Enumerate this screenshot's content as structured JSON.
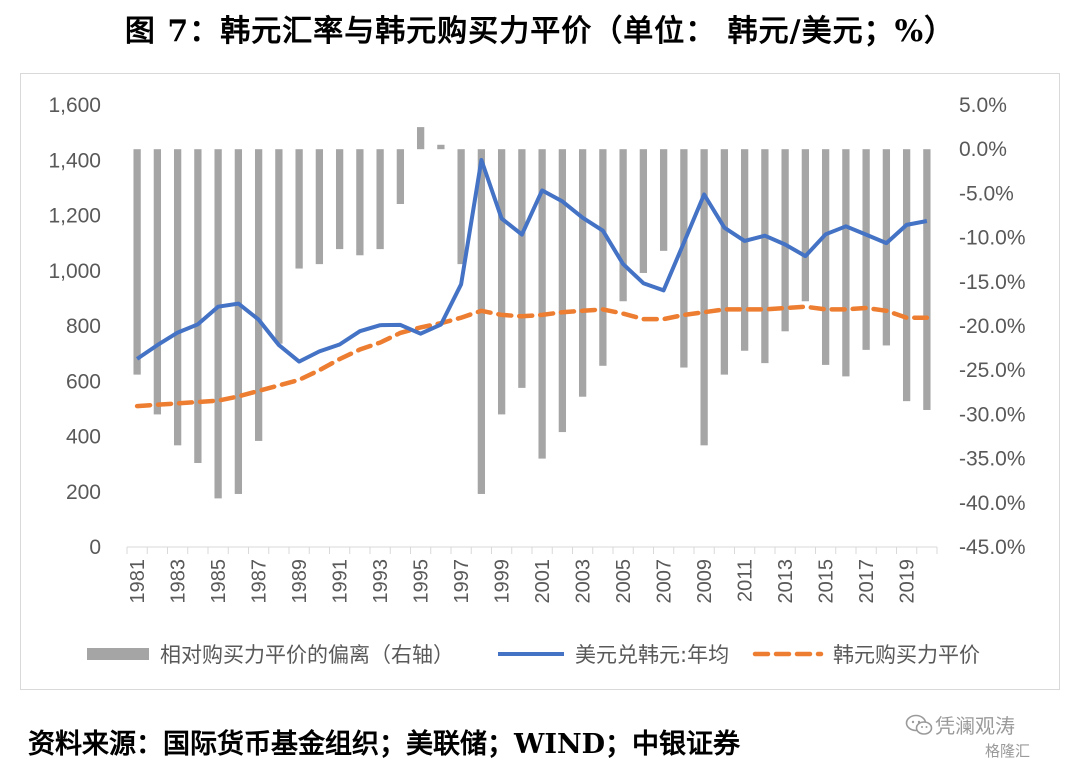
{
  "title": "图 7：韩元汇率与韩元购买力平价（单位： 韩元/美元；%）",
  "source": "资料来源：国际货币基金组织；美联储；WIND；中银证券",
  "watermark": {
    "account": "凭澜观涛",
    "logo": "格隆汇",
    "icon": "wechat-icon"
  },
  "colors": {
    "deviation": "#a5a5a5",
    "fx": "#4472c4",
    "ppp": "#ed7d31"
  },
  "chart_data": {
    "type": "bar+line",
    "title": "",
    "xlabel": "",
    "ylabel": "",
    "x": [
      1981,
      1982,
      1983,
      1984,
      1985,
      1986,
      1987,
      1988,
      1989,
      1990,
      1991,
      1992,
      1993,
      1994,
      1995,
      1996,
      1997,
      1998,
      1999,
      2000,
      2001,
      2002,
      2003,
      2004,
      2005,
      2006,
      2007,
      2008,
      2009,
      2010,
      2011,
      2012,
      2013,
      2014,
      2015,
      2016,
      2017,
      2018,
      2019,
      2020
    ],
    "x_tick_labels": [
      "1981",
      "1983",
      "1985",
      "1987",
      "1989",
      "1991",
      "1993",
      "1995",
      "1997",
      "1999",
      "2001",
      "2003",
      "2005",
      "2007",
      "2009",
      "2011",
      "2013",
      "2015",
      "2017",
      "2019"
    ],
    "y_left": {
      "min": 0,
      "max": 1600,
      "step": 200,
      "tick_labels": [
        "0",
        "200",
        "400",
        "600",
        "800",
        "1,000",
        "1,200",
        "1,400",
        "1,600"
      ]
    },
    "y_right": {
      "min": -45,
      "max": 5,
      "step": 5,
      "tick_labels": [
        "-45.0%",
        "-40.0%",
        "-35.0%",
        "-30.0%",
        "-25.0%",
        "-20.0%",
        "-15.0%",
        "-10.0%",
        "-5.0%",
        "0.0%",
        "5.0%"
      ]
    },
    "series": [
      {
        "name": "相对购买力平价的偏离（右轴）",
        "type": "bar",
        "axis": "right",
        "values": [
          -25.5,
          -30,
          -33.5,
          -35.5,
          -39.5,
          -39,
          -33,
          -22,
          -13.5,
          -13,
          -11.3,
          -12,
          -11.3,
          -6.2,
          2.5,
          0.5,
          -13,
          -39,
          -30,
          -27,
          -35,
          -32,
          -28,
          -24.5,
          -17.2,
          -14,
          -11.5,
          -24.7,
          -33.5,
          -25.5,
          -22.8,
          -24.2,
          -20.6,
          -17.2,
          -24.4,
          -25.7,
          -22.7,
          -22.2,
          -28.5,
          -29.5
        ]
      },
      {
        "name": "美元兑韩元:年均",
        "type": "line",
        "axis": "left",
        "values": [
          681,
          731,
          776,
          806,
          870,
          881,
          823,
          731,
          671,
          708,
          733,
          781,
          803,
          804,
          772,
          805,
          951,
          1401,
          1189,
          1131,
          1291,
          1251,
          1192,
          1145,
          1024,
          955,
          929,
          1102,
          1276,
          1156,
          1108,
          1127,
          1095,
          1053,
          1132,
          1161,
          1131,
          1100,
          1166,
          1180
        ]
      },
      {
        "name": "韩元购买力平价",
        "type": "line",
        "style": "dashed",
        "axis": "left",
        "values": [
          510,
          515,
          520,
          525,
          530,
          545,
          565,
          585,
          605,
          640,
          680,
          715,
          740,
          775,
          795,
          810,
          830,
          855,
          840,
          835,
          840,
          850,
          855,
          860,
          845,
          825,
          825,
          840,
          850,
          860,
          860,
          860,
          865,
          870,
          860,
          860,
          865,
          855,
          830,
          830
        ]
      }
    ],
    "legend": {
      "position": "bottom"
    },
    "grid": false
  }
}
